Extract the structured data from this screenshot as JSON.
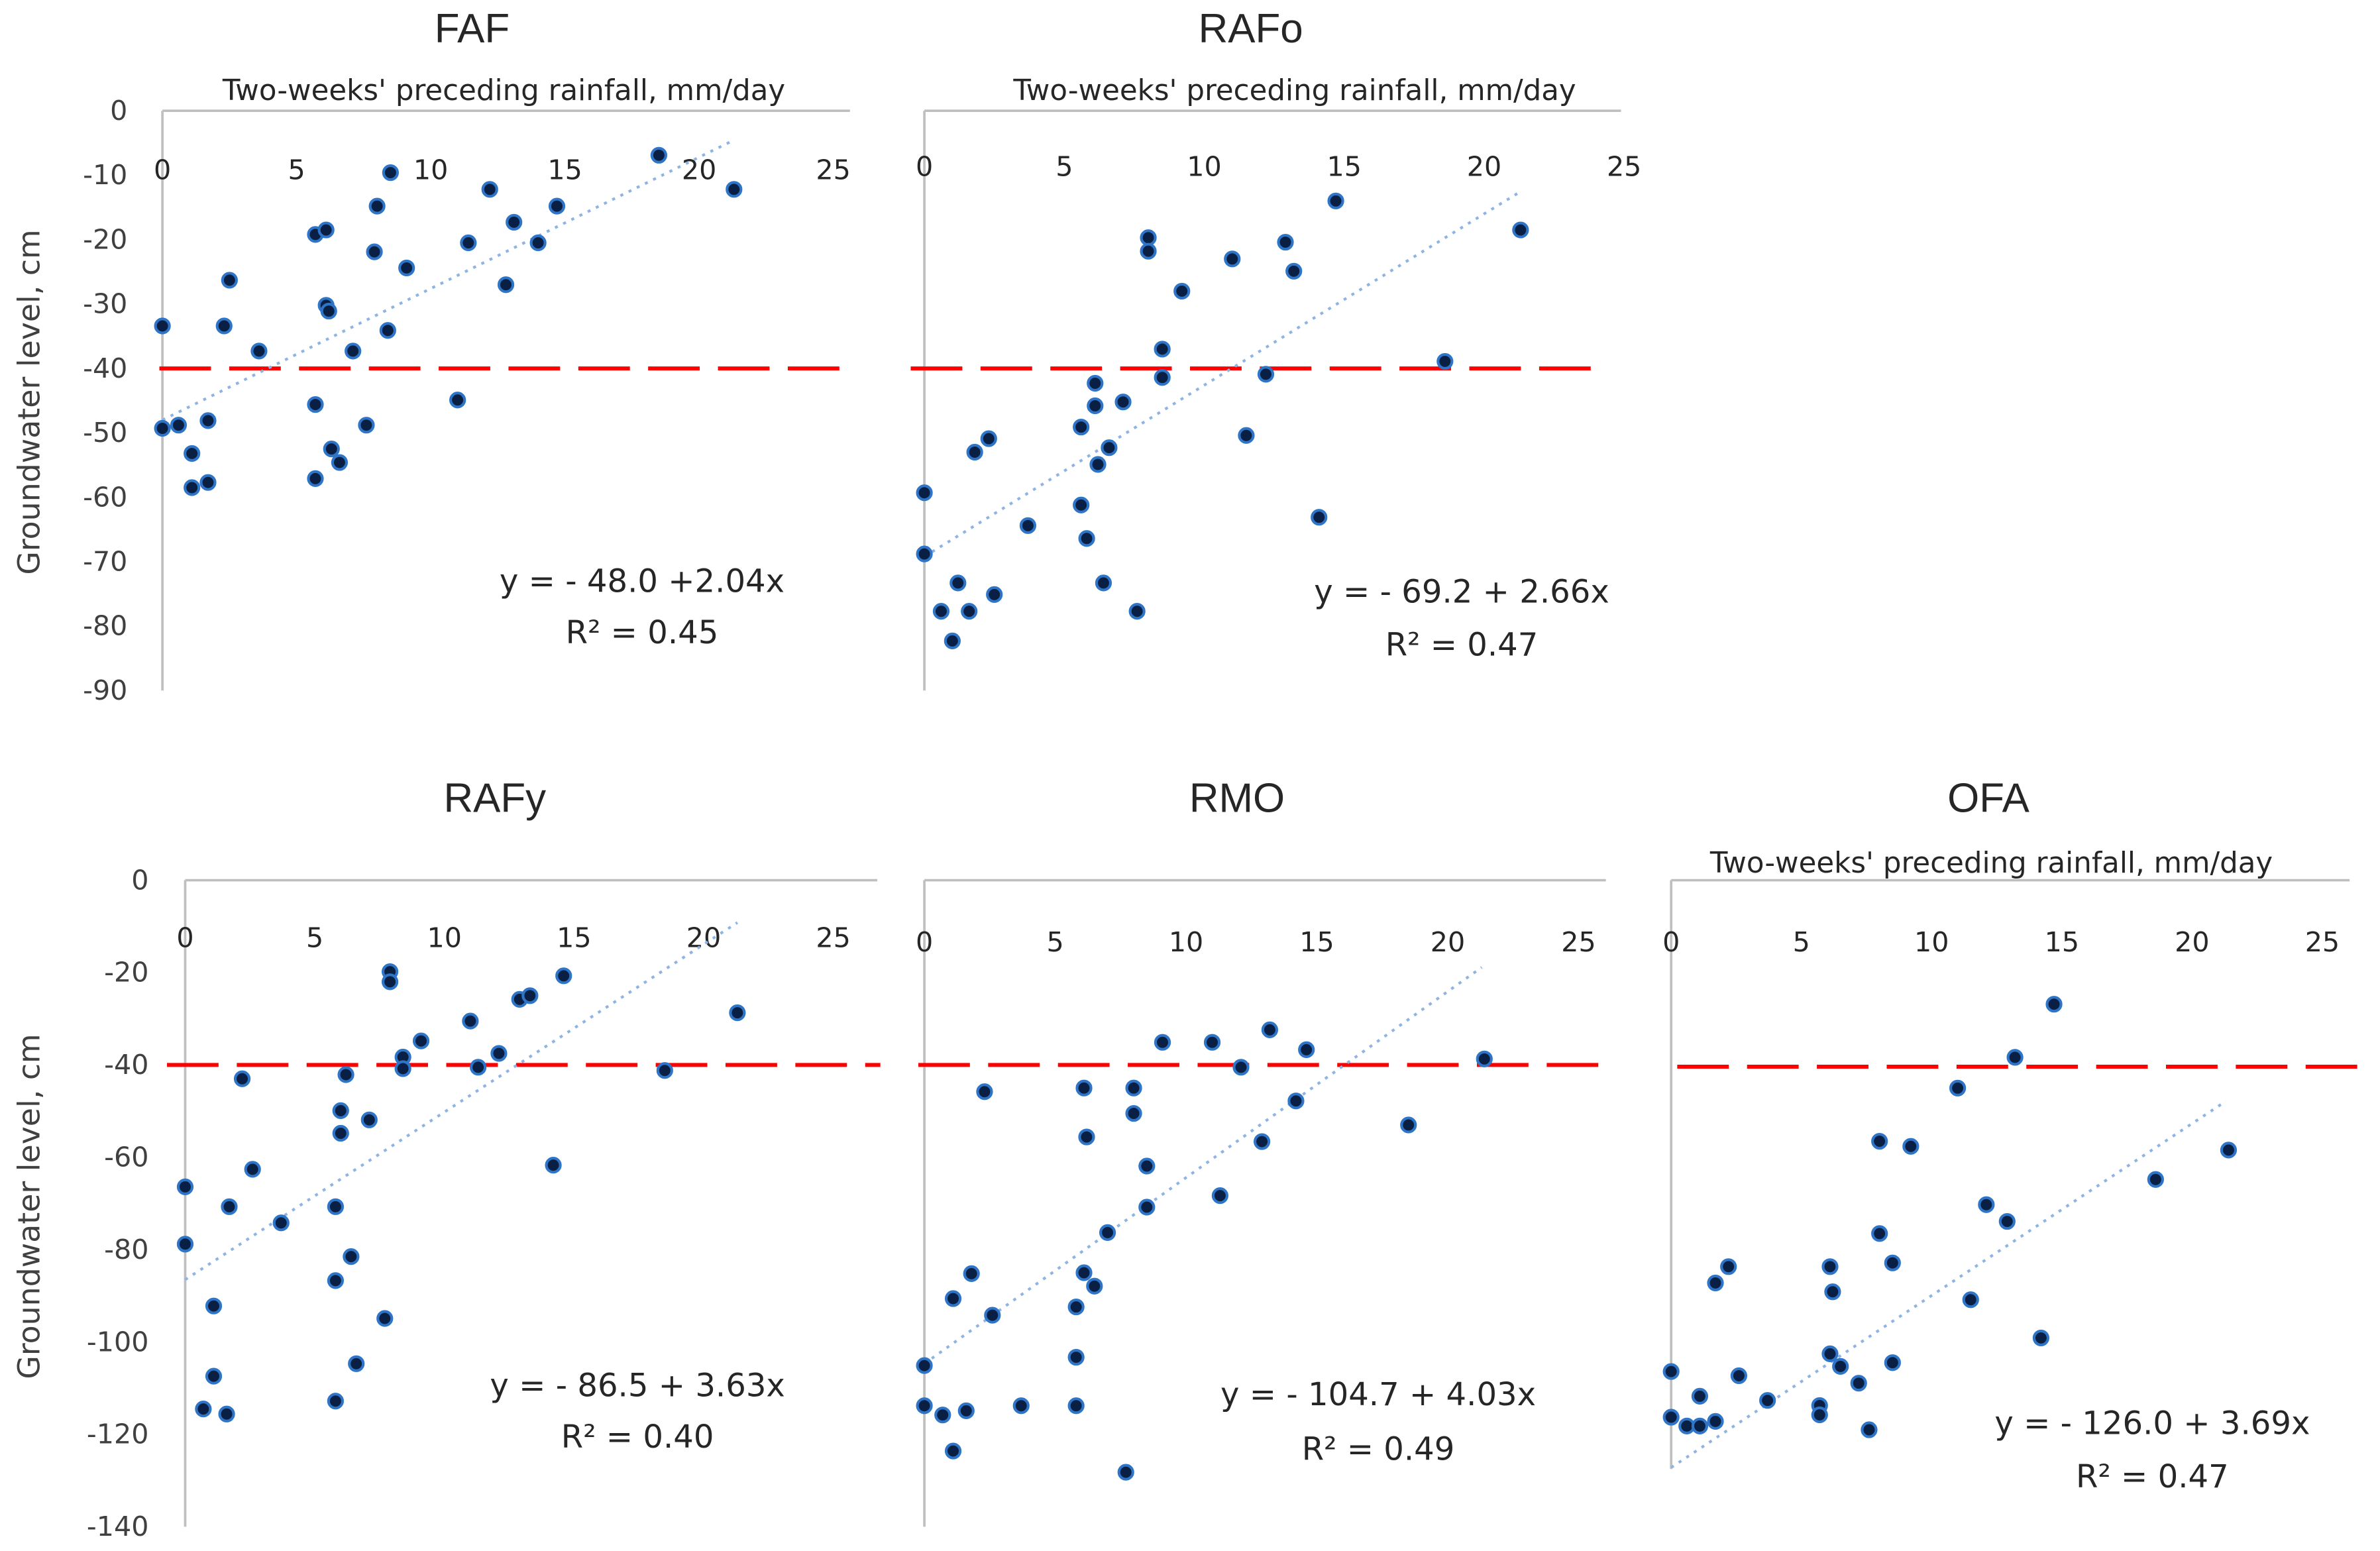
{
  "chart_data": [
    {
      "type": "scatter",
      "title": "FAF",
      "xlabel": "Two-weeks' preceding rainfall, mm/day",
      "ylabel": "Groundwater level, cm",
      "xlim": [
        0,
        25
      ],
      "ylim": [
        -90,
        0
      ],
      "xticks": [
        "0",
        "5",
        "10",
        "15",
        "20",
        "25"
      ],
      "yticks": [
        "0",
        "-10",
        "-20",
        "-30",
        "-40",
        "-50",
        "-60",
        "-70",
        "-80",
        "-90"
      ],
      "threshold": -40,
      "trendline": {
        "intercept": -48.0,
        "slope": 2.04,
        "x_range": [
          0,
          21.3
        ]
      },
      "equation": "y = - 48.0 +2.04x",
      "r2": "R² = 0.45",
      "points": [
        [
          0,
          -33.4
        ],
        [
          2.5,
          -26.3
        ],
        [
          2.3,
          -33.4
        ],
        [
          3.6,
          -37.3
        ],
        [
          0,
          -49.3
        ],
        [
          0.6,
          -48.8
        ],
        [
          1.7,
          -48.1
        ],
        [
          1.1,
          -53.2
        ],
        [
          1.1,
          -58.5
        ],
        [
          1.7,
          -57.7
        ],
        [
          5.7,
          -19.2
        ],
        [
          6.1,
          -18.5
        ],
        [
          6.1,
          -30.2
        ],
        [
          6.2,
          -31.1
        ],
        [
          7.1,
          -37.3
        ],
        [
          5.7,
          -45.6
        ],
        [
          5.7,
          -57.1
        ],
        [
          6.3,
          -52.5
        ],
        [
          6.6,
          -54.6
        ],
        [
          7.6,
          -48.8
        ],
        [
          8.5,
          -9.6
        ],
        [
          8.0,
          -14.8
        ],
        [
          7.9,
          -21.9
        ],
        [
          9.1,
          -24.4
        ],
        [
          8.4,
          -34.1
        ],
        [
          11.0,
          -44.9
        ],
        [
          12.2,
          -12.2
        ],
        [
          11.4,
          -20.5
        ],
        [
          13.1,
          -17.3
        ],
        [
          14.0,
          -20.5
        ],
        [
          14.7,
          -14.8
        ],
        [
          12.8,
          -27.0
        ],
        [
          18.5,
          -6.9
        ],
        [
          21.3,
          -12.2
        ]
      ]
    },
    {
      "type": "scatter",
      "title": "RAFo",
      "xlabel": "Two-weeks' preceding rainfall, mm/day",
      "ylabel": "",
      "xlim": [
        0,
        25
      ],
      "ylim": [
        -90,
        0
      ],
      "xticks": [
        "0",
        "5",
        "10",
        "15",
        "20",
        "25"
      ],
      "yticks": [],
      "threshold": -40,
      "trendline": {
        "intercept": -69.2,
        "slope": 2.66,
        "x_range": [
          0,
          21.3
        ]
      },
      "equation": "y = - 69.2 + 2.66x",
      "r2": "R² = 0.47",
      "points": [
        [
          14.7,
          -14.0
        ],
        [
          21.3,
          -18.5
        ],
        [
          8.0,
          -19.7
        ],
        [
          8.0,
          -21.8
        ],
        [
          12.9,
          -20.4
        ],
        [
          11.0,
          -23.0
        ],
        [
          13.2,
          -24.9
        ],
        [
          9.2,
          -28.0
        ],
        [
          8.5,
          -37.0
        ],
        [
          18.6,
          -38.9
        ],
        [
          8.5,
          -41.4
        ],
        [
          12.2,
          -40.9
        ],
        [
          6.1,
          -42.3
        ],
        [
          6.1,
          -45.8
        ],
        [
          7.1,
          -45.2
        ],
        [
          5.6,
          -49.1
        ],
        [
          2.3,
          -50.9
        ],
        [
          1.8,
          -53.0
        ],
        [
          6.6,
          -52.3
        ],
        [
          6.2,
          -54.9
        ],
        [
          11.5,
          -50.4
        ],
        [
          0,
          -59.3
        ],
        [
          5.6,
          -61.2
        ],
        [
          5.8,
          -66.4
        ],
        [
          3.7,
          -64.4
        ],
        [
          14.1,
          -63.1
        ],
        [
          0,
          -68.8
        ],
        [
          1.2,
          -73.3
        ],
        [
          2.5,
          -75.1
        ],
        [
          0.6,
          -77.7
        ],
        [
          1.6,
          -77.7
        ],
        [
          1.0,
          -82.3
        ],
        [
          6.4,
          -73.3
        ],
        [
          7.6,
          -77.7
        ]
      ]
    },
    {
      "type": "scatter",
      "title": "RAFy",
      "xlabel": "",
      "ylabel": "Groundwater level, cm",
      "xlim": [
        0,
        25
      ],
      "ylim": [
        -140,
        0
      ],
      "xticks": [
        "0",
        "5",
        "10",
        "15",
        "20",
        "25"
      ],
      "yticks": [
        "0",
        "-20",
        "-40",
        "-60",
        "-80",
        "-100",
        "-120",
        "-140"
      ],
      "threshold": -40,
      "trendline": {
        "intercept": -86.5,
        "slope": 3.63,
        "x_range": [
          0,
          21.3
        ]
      },
      "equation": "y = - 86.5 + 3.63x",
      "r2": "R² = 0.40",
      "points": [
        [
          7.9,
          -19.8
        ],
        [
          7.9,
          -22.0
        ],
        [
          14.6,
          -20.7
        ],
        [
          12.9,
          -25.8
        ],
        [
          13.3,
          -25.0
        ],
        [
          21.3,
          -28.7
        ],
        [
          11.0,
          -30.5
        ],
        [
          9.1,
          -34.8
        ],
        [
          8.4,
          -38.3
        ],
        [
          8.4,
          -40.8
        ],
        [
          12.1,
          -37.5
        ],
        [
          11.3,
          -40.5
        ],
        [
          18.5,
          -41.2
        ],
        [
          2.2,
          -43.0
        ],
        [
          6.2,
          -42.1
        ],
        [
          6.0,
          -49.9
        ],
        [
          6.0,
          -54.8
        ],
        [
          7.1,
          -51.9
        ],
        [
          2.6,
          -62.6
        ],
        [
          14.2,
          -61.7
        ],
        [
          0,
          -66.4
        ],
        [
          1.7,
          -70.7
        ],
        [
          5.8,
          -70.7
        ],
        [
          3.7,
          -74.2
        ],
        [
          0,
          -78.8
        ],
        [
          6.4,
          -81.5
        ],
        [
          5.8,
          -86.7
        ],
        [
          1.1,
          -92.2
        ],
        [
          7.7,
          -94.9
        ],
        [
          6.6,
          -104.7
        ],
        [
          1.1,
          -107.4
        ],
        [
          0.7,
          -114.5
        ],
        [
          1.6,
          -115.6
        ],
        [
          5.8,
          -112.8
        ]
      ]
    },
    {
      "type": "scatter",
      "title": "RMO",
      "xlabel": "",
      "ylabel": "",
      "xlim": [
        0,
        25
      ],
      "ylim": [
        -140,
        0
      ],
      "xticks": [
        "0",
        "5",
        "10",
        "15",
        "20",
        "25"
      ],
      "yticks": [],
      "threshold": -40,
      "trendline": {
        "intercept": -104.7,
        "slope": 4.03,
        "x_range": [
          0,
          21.3
        ]
      },
      "equation": "y =  - 104.7 + 4.03x",
      "r2": "R² = 0.49",
      "points": [
        [
          9.1,
          -35.1
        ],
        [
          11.0,
          -35.1
        ],
        [
          13.2,
          -32.4
        ],
        [
          14.6,
          -36.7
        ],
        [
          12.1,
          -40.5
        ],
        [
          21.4,
          -38.7
        ],
        [
          2.3,
          -45.8
        ],
        [
          6.1,
          -45.0
        ],
        [
          8.0,
          -45.0
        ],
        [
          8.0,
          -50.5
        ],
        [
          14.2,
          -47.8
        ],
        [
          6.2,
          -55.6
        ],
        [
          18.5,
          -53.0
        ],
        [
          12.9,
          -56.6
        ],
        [
          8.5,
          -61.9
        ],
        [
          11.3,
          -68.3
        ],
        [
          8.5,
          -70.8
        ],
        [
          7.0,
          -76.3
        ],
        [
          1.8,
          -85.2
        ],
        [
          6.1,
          -85.0
        ],
        [
          6.5,
          -87.9
        ],
        [
          1.1,
          -90.6
        ],
        [
          5.8,
          -92.4
        ],
        [
          2.6,
          -94.2
        ],
        [
          5.8,
          -103.3
        ],
        [
          0,
          -105.1
        ],
        [
          0,
          -113.8
        ],
        [
          0.7,
          -115.8
        ],
        [
          1.6,
          -114.9
        ],
        [
          3.7,
          -113.8
        ],
        [
          5.8,
          -113.8
        ],
        [
          1.1,
          -123.6
        ],
        [
          7.7,
          -128.2
        ]
      ]
    },
    {
      "type": "scatter",
      "title": "OFA",
      "xlabel": "Two-weeks' preceding rainfall, mm/day",
      "ylabel": "",
      "xlim": [
        0,
        25
      ],
      "ylim": [
        -140,
        0
      ],
      "xticks": [
        "0",
        "5",
        "10",
        "15",
        "20",
        "25"
      ],
      "yticks": [],
      "threshold": -40,
      "trendline": {
        "intercept": -126.0,
        "slope": 3.69,
        "x_range": [
          0,
          21.3
        ]
      },
      "equation": "y = - 126.0 + 3.69x",
      "r2": "R² = 0.47",
      "points": [
        [
          14.7,
          -26.6
        ],
        [
          13.2,
          -38.0
        ],
        [
          11.0,
          -44.6
        ],
        [
          8.0,
          -56.0
        ],
        [
          9.2,
          -57.1
        ],
        [
          21.4,
          -57.9
        ],
        [
          18.6,
          -64.2
        ],
        [
          12.1,
          -69.6
        ],
        [
          12.9,
          -73.2
        ],
        [
          8.0,
          -75.8
        ],
        [
          8.5,
          -82.1
        ],
        [
          6.1,
          -82.9
        ],
        [
          2.2,
          -82.9
        ],
        [
          1.7,
          -86.4
        ],
        [
          6.2,
          -88.3
        ],
        [
          11.5,
          -90.0
        ],
        [
          14.2,
          -98.2
        ],
        [
          6.1,
          -101.6
        ],
        [
          6.5,
          -104.3
        ],
        [
          8.5,
          -103.5
        ],
        [
          0,
          -105.4
        ],
        [
          2.6,
          -106.3
        ],
        [
          7.2,
          -107.9
        ],
        [
          1.1,
          -110.7
        ],
        [
          3.7,
          -111.6
        ],
        [
          5.7,
          -112.7
        ],
        [
          5.7,
          -114.7
        ],
        [
          0,
          -115.2
        ],
        [
          0.6,
          -117.1
        ],
        [
          1.1,
          -117.1
        ],
        [
          1.7,
          -116.1
        ],
        [
          7.6,
          -117.9
        ]
      ]
    }
  ],
  "colors": {
    "marker_fill": "#0a1f44",
    "marker_edge": "#2e75c8",
    "trendline": "#8fb4e3",
    "threshold": "#ff0000",
    "axis": "#bfbfbf"
  }
}
